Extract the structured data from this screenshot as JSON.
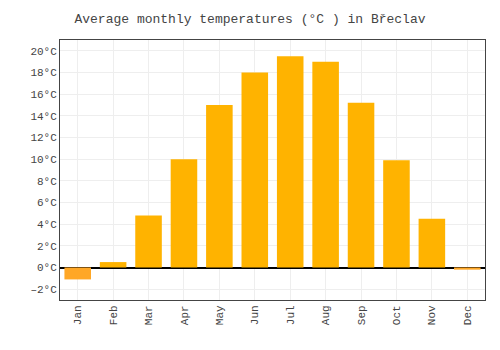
{
  "chart_data": {
    "type": "bar",
    "title": "Average monthly temperatures (°C ) in Břeclav",
    "categories": [
      "Jan",
      "Feb",
      "Mar",
      "Apr",
      "May",
      "Jun",
      "Jul",
      "Aug",
      "Sep",
      "Oct",
      "Nov",
      "Dec"
    ],
    "values": [
      -1.1,
      0.5,
      4.8,
      10.0,
      15.0,
      18.0,
      19.5,
      19.0,
      15.2,
      9.9,
      4.5,
      -0.2
    ],
    "colors": [
      "#FFA726",
      "#FFB300",
      "#FFB300",
      "#FFB300",
      "#FFB300",
      "#FFB300",
      "#FFB300",
      "#FFB300",
      "#FFB300",
      "#FFB300",
      "#FFB300",
      "#FFA726"
    ],
    "ylim": [
      -3,
      21
    ],
    "yticks": [
      {
        "value": -2,
        "label": "–2°C"
      },
      {
        "value": 0,
        "label": "0°C"
      },
      {
        "value": 2,
        "label": "2°C"
      },
      {
        "value": 4,
        "label": "4°C"
      },
      {
        "value": 6,
        "label": "6°C"
      },
      {
        "value": 8,
        "label": "8°C"
      },
      {
        "value": 10,
        "label": "10°C"
      },
      {
        "value": 12,
        "label": "12°C"
      },
      {
        "value": 14,
        "label": "14°C"
      },
      {
        "value": 16,
        "label": "16°C"
      },
      {
        "value": 18,
        "label": "18°C"
      },
      {
        "value": 20,
        "label": "20°C"
      }
    ],
    "grid": true
  }
}
